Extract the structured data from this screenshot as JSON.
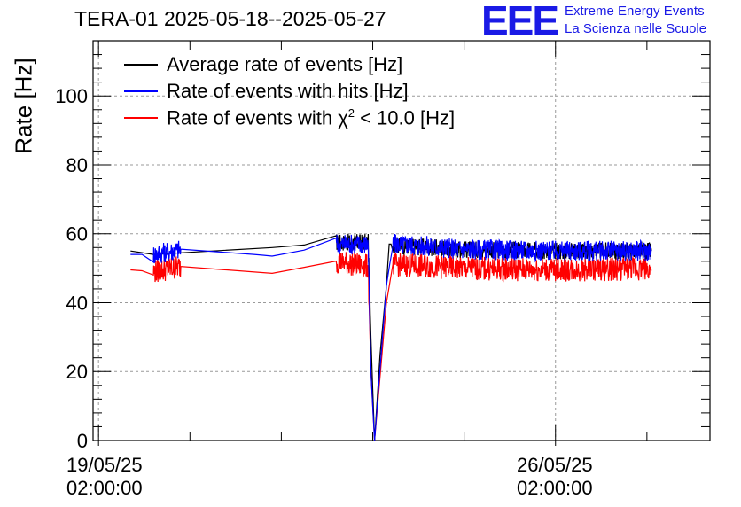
{
  "chart_data": {
    "type": "line",
    "title": "TERA-01 2025-05-18--2025-05-27",
    "ylabel": "Rate [Hz]",
    "xlabel": "",
    "ylim": [
      0,
      116
    ],
    "xlim": [
      -0.06,
      6.69
    ],
    "x_unit": "days since 19/05/25 02:00:00",
    "yticks": [
      0,
      20,
      40,
      60,
      80,
      100
    ],
    "xticks": [
      {
        "label_line1": "19/05/25",
        "label_line2": "02:00:00",
        "x": 0
      },
      {
        "label_line1": "26/05/25",
        "label_line2": "02:00:00",
        "x": 5
      }
    ],
    "grid": true,
    "legend_position": "top-left",
    "series": [
      {
        "name": "Average rate of events [Hz]",
        "color": "#000000",
        "x": [
          0.35,
          0.6,
          1.9,
          2.6,
          2.95,
          2.98,
          3.02,
          3.08,
          3.15,
          3.18,
          3.22,
          3.3,
          4.0,
          5.0,
          6.0,
          6.05
        ],
        "y": [
          55,
          54,
          56,
          57.5,
          57.5,
          30,
          0,
          25,
          45,
          57,
          57,
          56.5,
          55.5,
          55,
          55,
          55
        ]
      },
      {
        "name": "Rate of events with hits [Hz]",
        "color": "#0000ff",
        "x": [
          0.35,
          0.6,
          0.9,
          1.7,
          1.9,
          2.6,
          2.95,
          2.98,
          3.02,
          3.15,
          3.22,
          3.3,
          4.0,
          5.0,
          6.0,
          6.05
        ],
        "y": [
          54,
          54,
          55.5,
          54,
          53.5,
          57,
          57,
          20,
          0,
          45,
          57,
          57,
          55.5,
          55,
          55,
          55
        ]
      },
      {
        "name": "Rate of events with χ2 < 10.0 [Hz]",
        "color": "#ff0000",
        "x": [
          0.35,
          0.6,
          0.9,
          1.9,
          2.6,
          2.95,
          2.98,
          3.02,
          3.15,
          3.22,
          3.3,
          4.0,
          5.0,
          6.0,
          6.05
        ],
        "y": [
          49.5,
          49,
          50.5,
          48.5,
          52,
          50.5,
          20,
          0,
          40,
          51,
          51,
          50,
          49.5,
          50,
          49.5
        ]
      }
    ]
  },
  "header": {
    "title": "TERA-01 2025-05-18--2025-05-27",
    "logo_text": "EEE",
    "logo_line1": "Extreme Energy Events",
    "logo_line2": "La Scienza nelle Scuole"
  },
  "legend": {
    "item0": "Average rate of events [Hz]",
    "item1": "Rate of events with hits [Hz]",
    "item2_prefix": "Rate of events with χ",
    "item2_sup": "2",
    "item2_suffix": " < 10.0 [Hz]"
  }
}
